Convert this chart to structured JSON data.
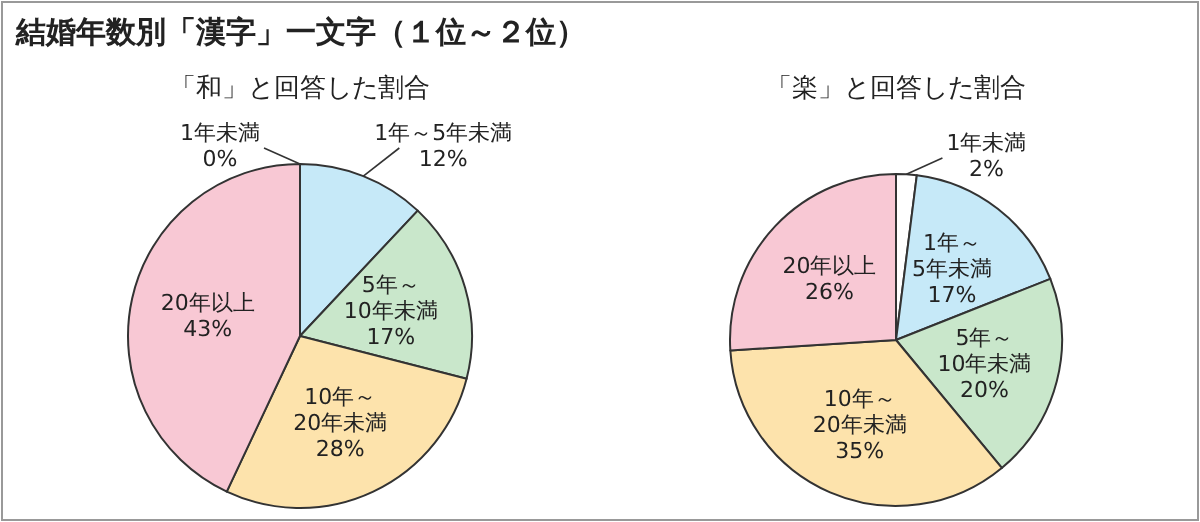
{
  "chart_data": [
    {
      "type": "pie",
      "title": "結婚年数別「漢字」一文字（１位～２位）",
      "subtitle": "「和」と回答した割合",
      "categories": [
        "1年未満",
        "1年～5年未満",
        "5年～10年未満",
        "10年～20年未満",
        "20年以上"
      ],
      "values": [
        0,
        12,
        17,
        28,
        43
      ],
      "value_labels": [
        "0%",
        "12%",
        "17%",
        "28%",
        "43%"
      ],
      "colors": [
        "#ffffff",
        "#c6e9f8",
        "#c9e7cb",
        "#fde3ac",
        "#f8c8d4"
      ]
    },
    {
      "type": "pie",
      "subtitle": "「楽」と回答した割合",
      "categories": [
        "1年未満",
        "1年～5年未満",
        "5年～10年未満",
        "10年～20年未満",
        "20年以上"
      ],
      "values": [
        2,
        17,
        20,
        35,
        26
      ],
      "value_labels": [
        "2%",
        "17%",
        "20%",
        "35%",
        "26%"
      ],
      "colors": [
        "#ffffff",
        "#c6e9f8",
        "#c9e7cb",
        "#fde3ac",
        "#f8c8d4"
      ]
    }
  ]
}
